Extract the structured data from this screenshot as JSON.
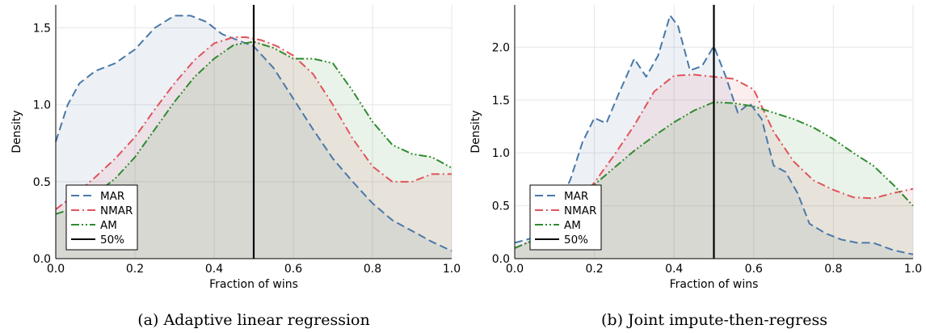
{
  "chart_data": [
    {
      "type": "area",
      "caption": "(a) Adaptive linear regression",
      "xlabel": "Fraction of wins",
      "ylabel": "Density",
      "xlim": [
        0,
        1
      ],
      "ylim": [
        0,
        1.65
      ],
      "xticks": [
        "0.0",
        "0.2",
        "0.4",
        "0.6",
        "0.8",
        "1.0"
      ],
      "yticks": [
        "0.0",
        "0.5",
        "1.0",
        "1.5"
      ],
      "grid": true,
      "legend_position": "bottom-left",
      "vline": {
        "x": 0.5,
        "label": "50%"
      },
      "series": [
        {
          "name": "MAR",
          "color": "#4a78a8",
          "dash": "long-dash",
          "x": [
            0.0,
            0.03,
            0.06,
            0.1,
            0.15,
            0.2,
            0.25,
            0.3,
            0.34,
            0.38,
            0.42,
            0.46,
            0.5,
            0.55,
            0.6,
            0.65,
            0.7,
            0.75,
            0.8,
            0.85,
            0.9,
            0.95,
            1.0
          ],
          "y": [
            0.76,
            1.0,
            1.14,
            1.22,
            1.27,
            1.36,
            1.5,
            1.58,
            1.58,
            1.54,
            1.46,
            1.42,
            1.38,
            1.24,
            1.04,
            0.84,
            0.65,
            0.5,
            0.36,
            0.25,
            0.18,
            0.11,
            0.05
          ]
        },
        {
          "name": "NMAR",
          "color": "#e0545b",
          "dash": "dash-dot",
          "x": [
            0.0,
            0.05,
            0.1,
            0.15,
            0.2,
            0.25,
            0.3,
            0.35,
            0.4,
            0.45,
            0.48,
            0.52,
            0.56,
            0.6,
            0.65,
            0.7,
            0.75,
            0.8,
            0.85,
            0.9,
            0.95,
            1.0
          ],
          "y": [
            0.32,
            0.42,
            0.53,
            0.65,
            0.79,
            0.97,
            1.14,
            1.29,
            1.4,
            1.44,
            1.44,
            1.42,
            1.38,
            1.32,
            1.2,
            1.0,
            0.78,
            0.6,
            0.5,
            0.5,
            0.55,
            0.55
          ]
        },
        {
          "name": "AM",
          "color": "#2e8b2e",
          "dash": "dash-dot-dot",
          "x": [
            0.0,
            0.05,
            0.1,
            0.15,
            0.2,
            0.25,
            0.3,
            0.35,
            0.4,
            0.45,
            0.5,
            0.55,
            0.6,
            0.65,
            0.7,
            0.75,
            0.8,
            0.85,
            0.9,
            0.95,
            1.0
          ],
          "y": [
            0.29,
            0.33,
            0.42,
            0.52,
            0.66,
            0.84,
            1.02,
            1.18,
            1.3,
            1.39,
            1.41,
            1.37,
            1.3,
            1.3,
            1.27,
            1.09,
            0.89,
            0.74,
            0.68,
            0.66,
            0.59
          ]
        }
      ]
    },
    {
      "type": "area",
      "caption": "(b) Joint impute-then-regress",
      "xlabel": "Fraction of wins",
      "ylabel": "Density",
      "xlim": [
        0,
        1
      ],
      "ylim": [
        0,
        2.4
      ],
      "xticks": [
        "0.0",
        "0.2",
        "0.4",
        "0.6",
        "0.8",
        "1.0"
      ],
      "yticks": [
        "0.0",
        "0.5",
        "1.0",
        "1.5",
        "2.0"
      ],
      "grid": true,
      "legend_position": "bottom-left",
      "vline": {
        "x": 0.5,
        "label": "50%"
      },
      "series": [
        {
          "name": "MAR",
          "color": "#4a78a8",
          "dash": "long-dash",
          "x": [
            0.0,
            0.05,
            0.1,
            0.14,
            0.17,
            0.2,
            0.23,
            0.26,
            0.3,
            0.33,
            0.36,
            0.39,
            0.41,
            0.44,
            0.47,
            0.5,
            0.53,
            0.56,
            0.59,
            0.62,
            0.65,
            0.68,
            0.71,
            0.74,
            0.78,
            0.82,
            0.86,
            0.9,
            0.95,
            1.0
          ],
          "y": [
            0.15,
            0.2,
            0.42,
            0.75,
            1.1,
            1.33,
            1.28,
            1.55,
            1.89,
            1.72,
            1.92,
            2.3,
            2.2,
            1.78,
            1.82,
            2.01,
            1.72,
            1.38,
            1.47,
            1.32,
            0.88,
            0.82,
            0.62,
            0.33,
            0.24,
            0.18,
            0.15,
            0.15,
            0.08,
            0.04
          ]
        },
        {
          "name": "NMAR",
          "color": "#e0545b",
          "dash": "dash-dot",
          "x": [
            0.0,
            0.05,
            0.1,
            0.15,
            0.2,
            0.25,
            0.3,
            0.35,
            0.4,
            0.45,
            0.5,
            0.55,
            0.6,
            0.65,
            0.7,
            0.75,
            0.8,
            0.85,
            0.9,
            0.95,
            1.0
          ],
          "y": [
            0.1,
            0.18,
            0.3,
            0.5,
            0.72,
            0.98,
            1.26,
            1.58,
            1.73,
            1.74,
            1.72,
            1.7,
            1.6,
            1.2,
            0.92,
            0.74,
            0.65,
            0.58,
            0.57,
            0.62,
            0.66
          ]
        },
        {
          "name": "AM",
          "color": "#2e8b2e",
          "dash": "dash-dot-dot",
          "x": [
            0.0,
            0.05,
            0.1,
            0.15,
            0.2,
            0.25,
            0.3,
            0.35,
            0.4,
            0.45,
            0.5,
            0.55,
            0.6,
            0.65,
            0.7,
            0.75,
            0.8,
            0.85,
            0.9,
            0.95,
            1.0
          ],
          "y": [
            0.1,
            0.18,
            0.3,
            0.48,
            0.7,
            0.86,
            1.02,
            1.16,
            1.29,
            1.4,
            1.48,
            1.47,
            1.44,
            1.38,
            1.32,
            1.24,
            1.13,
            1.0,
            0.88,
            0.7,
            0.5
          ]
        }
      ]
    }
  ]
}
